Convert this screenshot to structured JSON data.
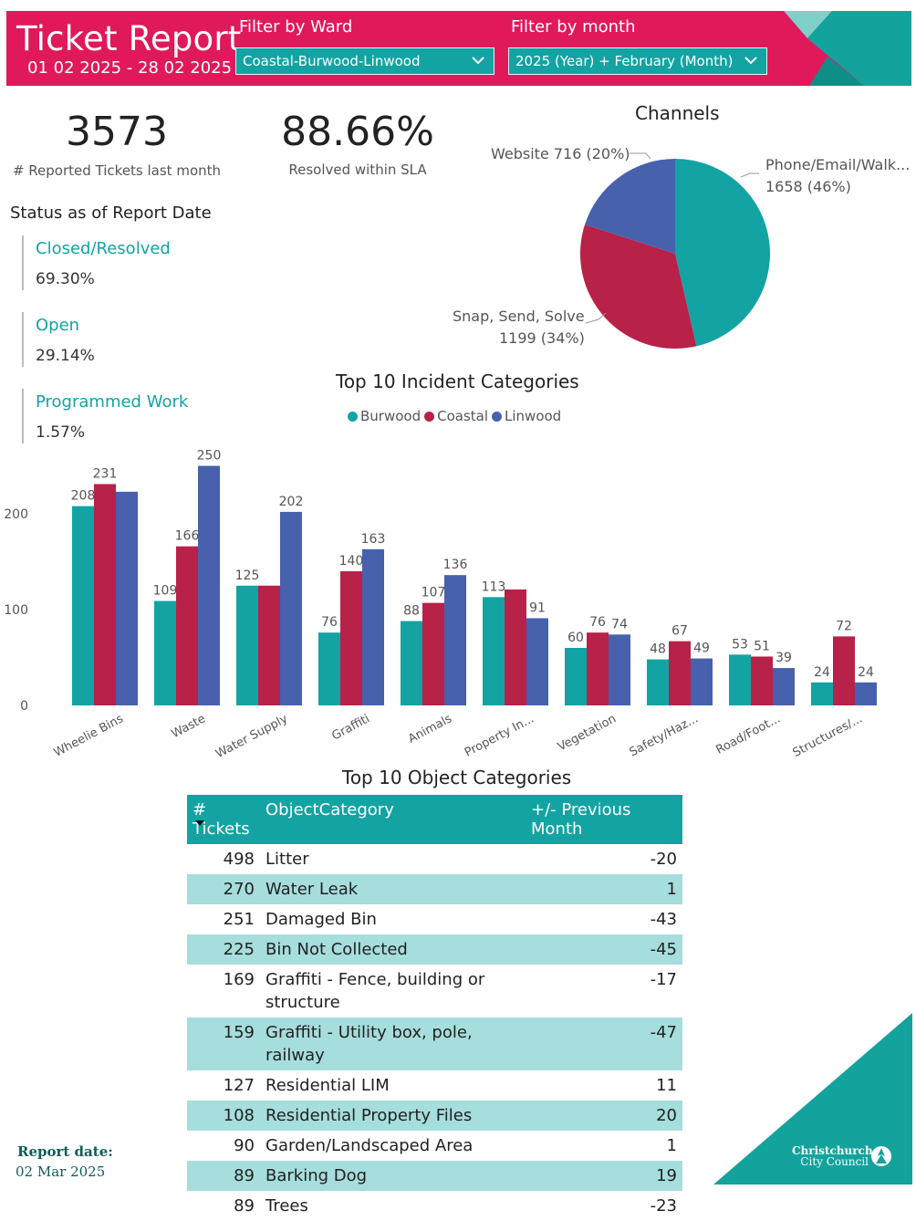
{
  "header": {
    "title": "Ticket Report",
    "date_range": "01 02 2025 - 28 02 2025",
    "ward_filter": {
      "label": "Filter by Ward",
      "value": "Coastal-Burwood-Linwood"
    },
    "month_filter": {
      "label": "Filter by month",
      "value": "2025 (Year) + February (Month)"
    }
  },
  "kpis": {
    "reported": {
      "value": "3573",
      "label": "# Reported Tickets last month"
    },
    "sla": {
      "value": "88.66%",
      "label": "Resolved within SLA"
    }
  },
  "status": {
    "title": "Status as of Report Date",
    "items": [
      {
        "name": "Closed/Resolved",
        "value": "69.30%"
      },
      {
        "name": "Open",
        "value": "29.14%"
      },
      {
        "name": "Programmed Work",
        "value": "1.57%"
      }
    ]
  },
  "channels": {
    "title": "Channels",
    "labels": {
      "website": "Website 716 (20%)",
      "phone_line1": "Phone/Email/Walk...",
      "phone_line2": "1658 (46%)",
      "snap_line1": "Snap, Send, Solve",
      "snap_line2": "1199 (34%)"
    }
  },
  "incident_chart": {
    "title": "Top 10 Incident Categories",
    "legend": [
      "Burwood",
      "Coastal",
      "Linwood"
    ]
  },
  "object_table": {
    "title": "Top 10 Object Categories",
    "headers": {
      "tickets": "# Tickets",
      "category": "ObjectCategory",
      "change": "+/- Previous Month"
    },
    "rows": [
      {
        "tickets": "498",
        "category": "Litter",
        "change": "-20"
      },
      {
        "tickets": "270",
        "category": "Water Leak",
        "change": "1"
      },
      {
        "tickets": "251",
        "category": "Damaged Bin",
        "change": "-43"
      },
      {
        "tickets": "225",
        "category": "Bin Not Collected",
        "change": "-45"
      },
      {
        "tickets": "169",
        "category": "Graffiti - Fence, building or structure",
        "change": "-17"
      },
      {
        "tickets": "159",
        "category": "Graffiti - Utility box, pole, railway",
        "change": "-47"
      },
      {
        "tickets": "127",
        "category": "Residential LIM",
        "change": "11"
      },
      {
        "tickets": "108",
        "category": "Residential Property Files",
        "change": "20"
      },
      {
        "tickets": "90",
        "category": "Garden/Landscaped Area",
        "change": "1"
      },
      {
        "tickets": "89",
        "category": "Barking Dog",
        "change": "19"
      },
      {
        "tickets": "89",
        "category": "Trees",
        "change": "-23"
      }
    ]
  },
  "footer": {
    "report_label": "Report date:",
    "report_date": "02 Mar 2025",
    "logo_line1": "Christchurch",
    "logo_line2": "City Council"
  },
  "colors": {
    "brand_pink": "#e0195b",
    "teal": "#13a3a3",
    "crimson": "#b82148",
    "blue": "#4761ad",
    "light_teal": "#a6dddd"
  },
  "chart_data": [
    {
      "type": "pie",
      "title": "Channels",
      "slices": [
        {
          "name": "Phone/Email/Walk...",
          "value": 1658,
          "pct": 46,
          "color": "#13a3a3"
        },
        {
          "name": "Snap, Send, Solve",
          "value": 1199,
          "pct": 34,
          "color": "#b82148"
        },
        {
          "name": "Website",
          "value": 716,
          "pct": 20,
          "color": "#4761ad"
        }
      ]
    },
    {
      "type": "bar",
      "title": "Top 10 Incident Categories",
      "categories": [
        "Wheelie Bins",
        "Waste",
        "Water Supply",
        "Graffiti",
        "Animals",
        "Property In...",
        "Vegetation",
        "Safety/Haz...",
        "Road/Foot...",
        "Structures/..."
      ],
      "series": [
        {
          "name": "Burwood",
          "color": "#13a3a3",
          "values": [
            208,
            109,
            125,
            76,
            88,
            113,
            60,
            48,
            53,
            24
          ],
          "labels": [
            "208",
            "109",
            "125",
            "76",
            "88",
            "113",
            "60",
            "48",
            "53",
            "24"
          ]
        },
        {
          "name": "Coastal",
          "color": "#b82148",
          "values": [
            231,
            166,
            125,
            140,
            107,
            121,
            76,
            67,
            51,
            72
          ],
          "labels": [
            "231",
            "166",
            "",
            "140",
            "107",
            "",
            "76",
            "67",
            "51",
            "72"
          ]
        },
        {
          "name": "Linwood",
          "color": "#4761ad",
          "values": [
            223,
            250,
            202,
            163,
            136,
            91,
            74,
            49,
            39,
            24
          ],
          "labels": [
            "",
            "250",
            "202",
            "163",
            "136",
            "91",
            "74",
            "49",
            "39",
            "24"
          ]
        }
      ],
      "yticks": [
        "0",
        "100",
        "200"
      ],
      "ylim": [
        0,
        260
      ],
      "legend": "top-center"
    }
  ]
}
